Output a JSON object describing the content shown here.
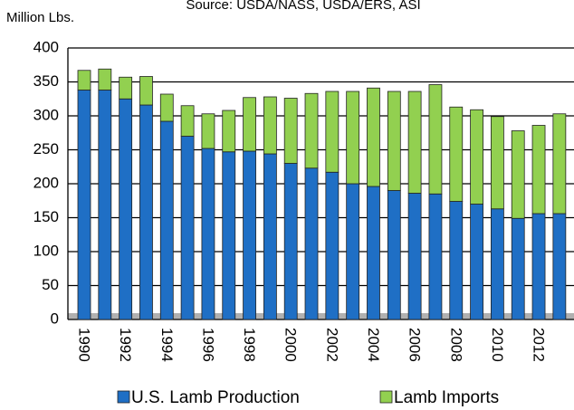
{
  "chart_data": {
    "type": "stacked-bar",
    "title": "Source: USDA/NASS, USDA/ERS, ASI",
    "y_label": "Million Lbs.",
    "categories": [
      "1990",
      null,
      "1992",
      null,
      "1994",
      null,
      "1996",
      null,
      "1998",
      null,
      "2000",
      null,
      "2002",
      null,
      "2004",
      null,
      "2006",
      null,
      "2008",
      null,
      "2010",
      null,
      "2012",
      null
    ],
    "series": [
      {
        "name": "U.S. Lamb Production",
        "color": "#1f6fc5",
        "values": [
          338,
          338,
          325,
          316,
          292,
          270,
          252,
          247,
          248,
          244,
          230,
          223,
          217,
          200,
          196,
          190,
          186,
          185,
          174,
          170,
          163,
          149,
          156,
          156
        ]
      },
      {
        "name": "Lamb Imports",
        "color": "#92d050",
        "values": [
          29,
          31,
          32,
          42,
          40,
          45,
          51,
          61,
          79,
          84,
          96,
          110,
          119,
          136,
          145,
          146,
          150,
          161,
          139,
          139,
          136,
          129,
          130,
          147
        ]
      }
    ],
    "ylim": [
      0,
      400
    ],
    "yticks": [
      0,
      50,
      100,
      150,
      200,
      250,
      300,
      350,
      400
    ],
    "grid": true
  }
}
